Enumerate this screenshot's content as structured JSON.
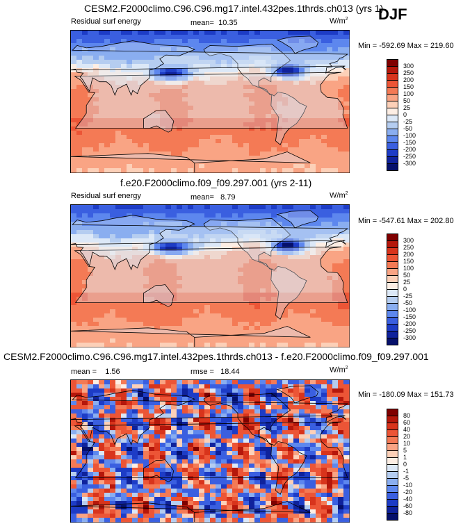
{
  "season": "DJF",
  "panels": [
    {
      "title": "CESM2.F2000climo.C96.C96.mg17.intel.432pes.1thrds.ch013 (yrs 1)",
      "variable": "Residual surf energy",
      "mean_label": "mean=",
      "mean_value": "10.35",
      "units_base": "W/m",
      "units_exp": "2",
      "minmax": "Min = -592.69 Max = 219.60",
      "levels": [
        "300",
        "250",
        "200",
        "150",
        "100",
        "50",
        "25",
        "0",
        "-25",
        "-50",
        "-100",
        "-150",
        "-200",
        "-250",
        "-300"
      ]
    },
    {
      "title": "f.e20.F2000climo.f09_f09.297.001 (yrs 2-11)",
      "variable": "Residual surf energy",
      "mean_label": "mean=",
      "mean_value": "8.79",
      "units_base": "W/m",
      "units_exp": "2",
      "minmax": "Min = -547.61 Max = 202.80",
      "levels": [
        "300",
        "250",
        "200",
        "150",
        "100",
        "50",
        "25",
        "0",
        "-25",
        "-50",
        "-100",
        "-150",
        "-200",
        "-250",
        "-300"
      ]
    },
    {
      "title": "CESM2.F2000climo.C96.C96.mg17.intel.432pes.1thrds.ch013 - f.e20.F2000climo.f09_f09.297.001",
      "mean_label": "mean =",
      "mean_value": "1.56",
      "rmse_label": "rmse =",
      "rmse_value": "18.44",
      "units_base": "W/m",
      "units_exp": "2",
      "minmax": "Min = -180.09 Max = 151.73",
      "levels": [
        "80",
        "60",
        "40",
        "20",
        "10",
        "5",
        "1",
        "0",
        "-1",
        "-5",
        "-10",
        "-20",
        "-40",
        "-60",
        "-80"
      ]
    }
  ],
  "colors": {
    "scale": [
      "#7f0000",
      "#b5170b",
      "#d8341c",
      "#ec5536",
      "#f47a55",
      "#f9a484",
      "#fcd0b8",
      "#fdeee4",
      "#dce8f7",
      "#b5cdf0",
      "#8aaef0",
      "#5d87ee",
      "#3a5fe0",
      "#1d3cc6",
      "#0f229c",
      "#05106b"
    ]
  },
  "chart_data": [
    {
      "type": "heatmap",
      "title": "CESM2.F2000climo.C96.C96.mg17.intel.432pes.1thrds.ch013 (yrs 1)",
      "subtitle": "Residual surf energy",
      "units": "W/m2",
      "mean": 10.35,
      "min": -592.69,
      "max": 219.6,
      "contour_levels": [
        -300,
        -250,
        -200,
        -150,
        -100,
        -50,
        -25,
        0,
        25,
        50,
        100,
        150,
        200,
        250,
        300
      ]
    },
    {
      "type": "heatmap",
      "title": "f.e20.F2000climo.f09_f09.297.001 (yrs 2-11)",
      "subtitle": "Residual surf energy",
      "units": "W/m2",
      "mean": 8.79,
      "min": -547.61,
      "max": 202.8,
      "contour_levels": [
        -300,
        -250,
        -200,
        -150,
        -100,
        -50,
        -25,
        0,
        25,
        50,
        100,
        150,
        200,
        250,
        300
      ]
    },
    {
      "type": "heatmap",
      "title": "CESM2.F2000climo.C96.C96.mg17.intel.432pes.1thrds.ch013 - f.e20.F2000climo.f09_f09.297.001",
      "units": "W/m2",
      "mean": 1.56,
      "rmse": 18.44,
      "min": -180.09,
      "max": 151.73,
      "contour_levels": [
        -80,
        -60,
        -40,
        -20,
        -10,
        -5,
        -1,
        0,
        1,
        5,
        10,
        20,
        40,
        60,
        80
      ]
    }
  ]
}
